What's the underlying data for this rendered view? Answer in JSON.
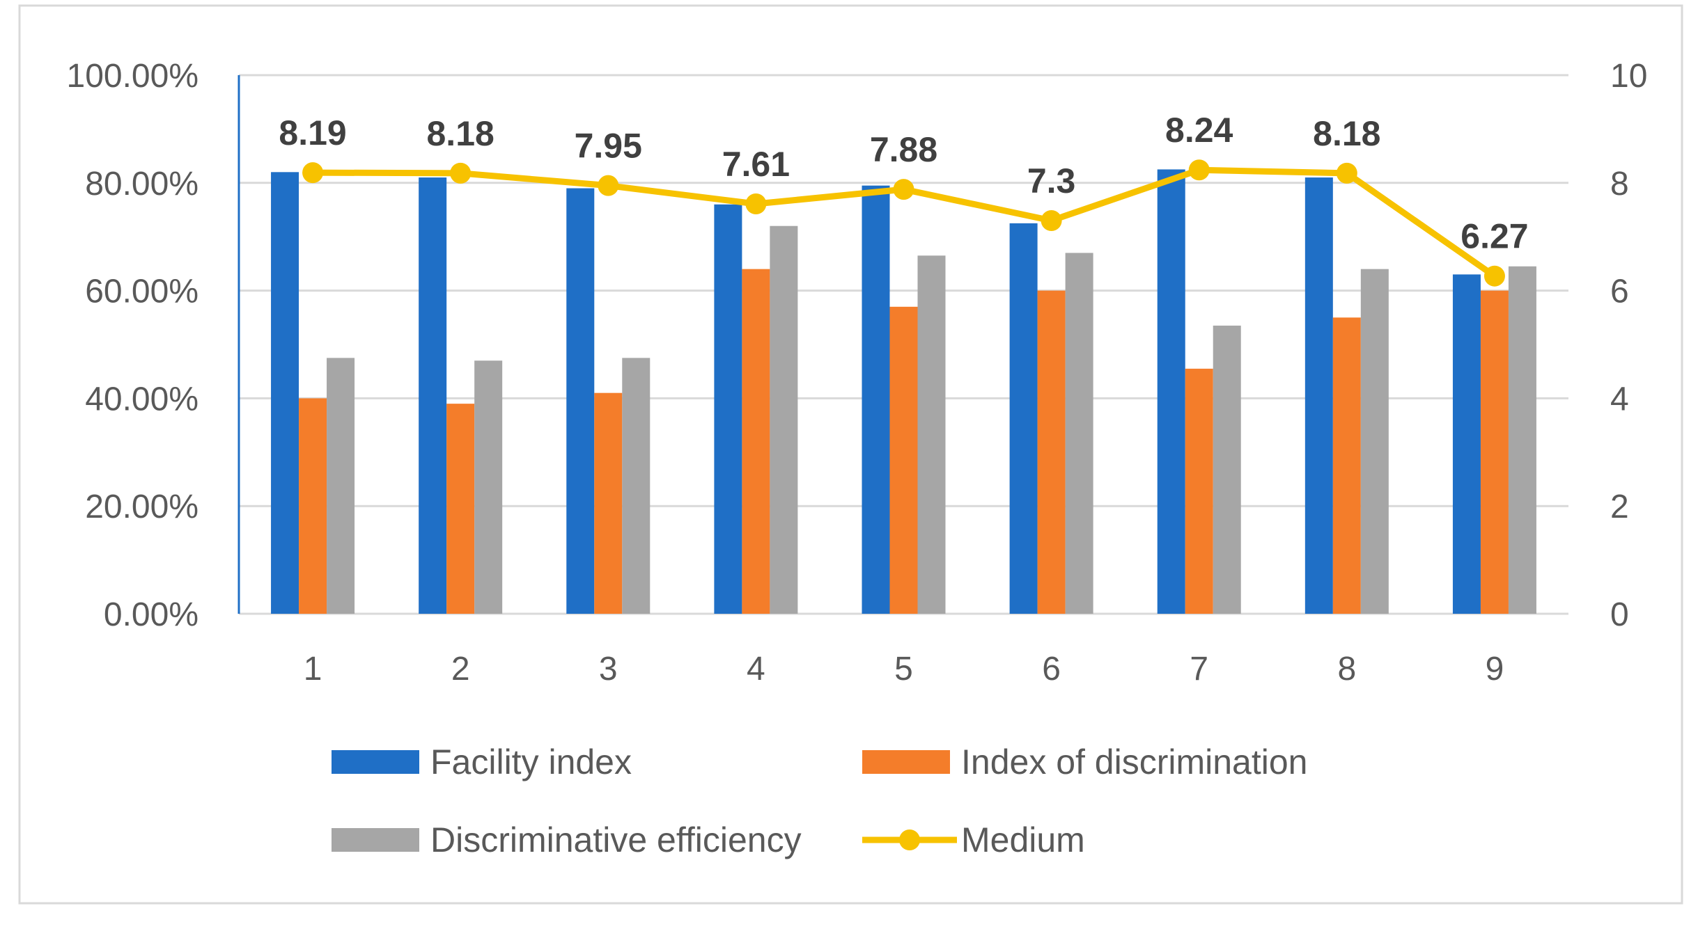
{
  "chart_data": {
    "type": "bar+line",
    "title": "",
    "categories": [
      "1",
      "2",
      "3",
      "4",
      "5",
      "6",
      "7",
      "8",
      "9"
    ],
    "primary_axis": {
      "ticks": [
        "0.00%",
        "20.00%",
        "40.00%",
        "60.00%",
        "80.00%",
        "100.00%"
      ],
      "ylim": [
        0,
        100
      ]
    },
    "secondary_axis": {
      "ticks": [
        "0",
        "2",
        "4",
        "6",
        "8",
        "10"
      ],
      "ylim": [
        0,
        10
      ]
    },
    "series": [
      {
        "name": "Facility index",
        "type": "bar",
        "axis": "primary",
        "color": "#1F6FC6",
        "values": [
          82,
          81,
          79,
          76,
          79.5,
          72.5,
          82.5,
          81,
          63
        ]
      },
      {
        "name": "Index of discrimination",
        "type": "bar",
        "axis": "primary",
        "color": "#F47D2A",
        "values": [
          40,
          39,
          41,
          64,
          57,
          60,
          45.5,
          55,
          60
        ]
      },
      {
        "name": "Discriminative efficiency",
        "type": "bar",
        "axis": "primary",
        "color": "#A6A6A6",
        "values": [
          47.5,
          47,
          47.5,
          72,
          66.5,
          67,
          53.5,
          64,
          64.5
        ]
      },
      {
        "name": "Medium",
        "type": "line",
        "axis": "secondary",
        "color": "#F7C200",
        "values": [
          8.19,
          8.18,
          7.95,
          7.61,
          7.88,
          7.3,
          8.24,
          8.18,
          6.27
        ],
        "labels": [
          "8.19",
          "8.18",
          "7.95",
          "7.61",
          "7.88",
          "7.3",
          "8.24",
          "8.18",
          "6.27"
        ]
      }
    ],
    "legend": {
      "position": "bottom",
      "items": [
        "Facility index",
        "Index of discrimination",
        "Discriminative efficiency",
        "Medium"
      ]
    },
    "colors": {
      "gridline": "#D9D9D9",
      "axis_text": "#595959",
      "label_text": "#404040",
      "frame": "#D9D9D9",
      "left_axis_line": "#1F6FC6"
    }
  }
}
